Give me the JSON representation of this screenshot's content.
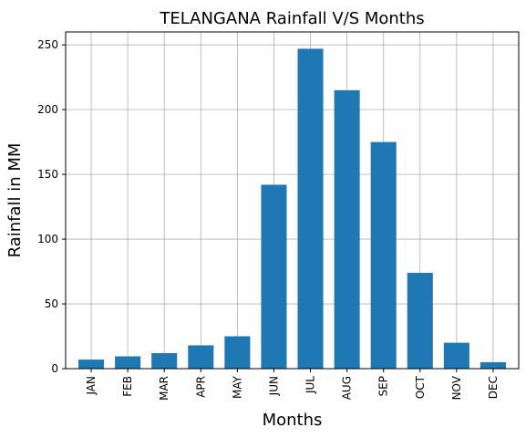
{
  "chart_data": {
    "type": "bar",
    "title": "TELANGANA Rainfall V/S Months",
    "xlabel": "Months",
    "ylabel": "Rainfall in MM",
    "categories": [
      "JAN",
      "FEB",
      "MAR",
      "APR",
      "MAY",
      "JUN",
      "JUL",
      "AUG",
      "SEP",
      "OCT",
      "NOV",
      "DEC"
    ],
    "values": [
      7,
      9.5,
      12,
      18,
      25,
      142,
      247,
      215,
      175,
      74,
      20,
      5
    ],
    "ylim": [
      0,
      260
    ],
    "yticks": [
      0,
      50,
      100,
      150,
      200,
      250
    ],
    "grid": true,
    "bar_color": "#1f77b4",
    "x_tick_rotation": "vertical"
  }
}
